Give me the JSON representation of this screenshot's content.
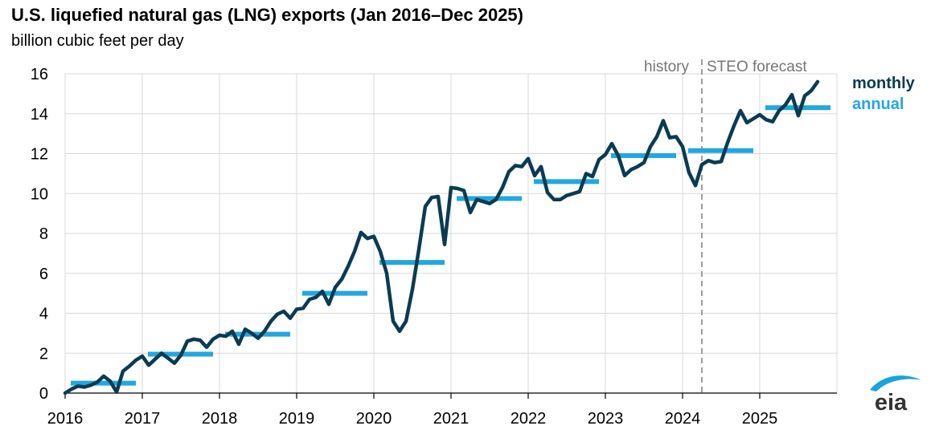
{
  "title": "U.S. liquefied natural gas (LNG) exports (Jan 2016–Dec 2025)",
  "subtitle": "billion cubic feet per day",
  "logo_text": "eia",
  "chart_data": {
    "type": "line",
    "title": "U.S. liquefied natural gas (LNG) exports (Jan 2016–Dec 2025)",
    "ylabel": "billion cubic feet per day",
    "xlim": [
      2016,
      2026
    ],
    "ylim": [
      0,
      16
    ],
    "y_ticks": [
      "0",
      "2",
      "4",
      "6",
      "8",
      "10",
      "12",
      "14",
      "16"
    ],
    "x_ticks": [
      "2016",
      "2017",
      "2018",
      "2019",
      "2020",
      "2021",
      "2022",
      "2023",
      "2024",
      "2025"
    ],
    "grid": true,
    "forecast_start": 2024.25,
    "annotations": {
      "history": "history",
      "forecast": "STEO forecast"
    },
    "series": [
      {
        "name": "monthly",
        "color": "#0b3b52",
        "start": 2016.0,
        "step": 0.083333,
        "values": [
          0.0,
          0.2,
          0.35,
          0.3,
          0.4,
          0.55,
          0.85,
          0.6,
          0.05,
          1.1,
          1.35,
          1.65,
          1.85,
          1.4,
          1.7,
          2.0,
          1.75,
          1.5,
          1.9,
          2.6,
          2.7,
          2.65,
          2.3,
          2.7,
          2.9,
          2.85,
          3.1,
          2.45,
          3.2,
          3.0,
          2.75,
          3.1,
          3.6,
          3.95,
          4.1,
          3.75,
          4.2,
          4.25,
          4.7,
          4.8,
          5.1,
          4.45,
          5.3,
          5.7,
          6.35,
          7.1,
          8.05,
          7.75,
          7.85,
          7.1,
          6.0,
          3.6,
          3.1,
          3.6,
          5.2,
          7.2,
          9.35,
          9.8,
          9.85,
          7.45,
          10.3,
          10.25,
          10.15,
          9.05,
          9.7,
          9.6,
          9.5,
          9.7,
          10.3,
          11.1,
          11.4,
          11.35,
          11.75,
          10.9,
          11.35,
          10.05,
          9.7,
          9.7,
          9.9,
          10.0,
          10.1,
          11.0,
          10.85,
          11.7,
          11.95,
          12.5,
          11.9,
          10.9,
          11.2,
          11.35,
          11.55,
          12.35,
          12.85,
          13.65,
          12.8,
          12.85,
          12.35,
          11.05,
          10.4,
          11.45,
          11.65,
          11.55,
          11.6,
          12.55,
          13.4,
          14.15,
          13.55,
          13.75,
          13.95,
          13.7,
          13.6,
          14.15,
          14.45,
          14.95,
          13.9,
          14.9,
          15.15,
          15.6
        ]
      },
      {
        "name": "annual",
        "color": "#22a7e0",
        "years": [
          2016,
          2017,
          2018,
          2019,
          2020,
          2021,
          2022,
          2023,
          2024,
          2025
        ],
        "values": [
          0.5,
          1.95,
          2.95,
          5.0,
          6.55,
          9.75,
          10.6,
          11.9,
          12.15,
          14.3
        ]
      }
    ]
  }
}
